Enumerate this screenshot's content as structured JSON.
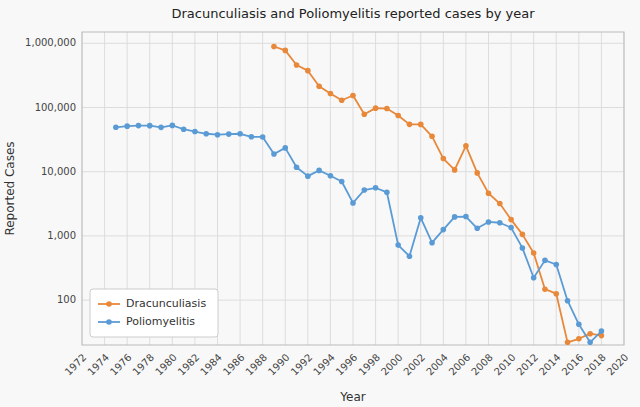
{
  "chart_data": {
    "type": "line",
    "title": "Dracunculiasis and Poliomyelitis reported cases by year",
    "x_label": "Year",
    "y_label": "Reported Cases",
    "log": "y",
    "grid": true,
    "legend": "lower left",
    "xlim": [
      1972,
      2020
    ],
    "ylim": [
      20,
      1500000
    ],
    "xticks": [
      1972,
      1974,
      1976,
      1978,
      1980,
      1982,
      1984,
      1986,
      1988,
      1990,
      1992,
      1994,
      1996,
      1998,
      2000,
      2002,
      2004,
      2006,
      2008,
      2010,
      2012,
      2014,
      2016,
      2018,
      2020
    ],
    "yticks": [
      100,
      {
        "value": 1000,
        "label": "1,000"
      },
      {
        "value": 10000,
        "label": "10,000"
      },
      {
        "value": 100000,
        "label": "100,000"
      },
      {
        "value": 1000000,
        "label": "1,000,000"
      }
    ],
    "series": [
      {
        "name": "Dracunculiasis",
        "color": "#E8883A",
        "marker": "circle",
        "x": [
          1989,
          1990,
          1991,
          1992,
          1993,
          1994,
          1995,
          1996,
          1997,
          1998,
          1999,
          2000,
          2001,
          2002,
          2003,
          2004,
          2005,
          2006,
          2007,
          2008,
          2009,
          2010,
          2011,
          2012,
          2013,
          2014,
          2015,
          2016,
          2017,
          2018
        ],
        "values": [
          892055,
          774763,
          459320,
          374780,
          213970,
          164980,
          129852,
          153693,
          78557,
          97755,
          96370,
          75223,
          54638,
          54519,
          35621,
          16026,
          10674,
          25217,
          9585,
          4619,
          3190,
          1797,
          1058,
          542,
          148,
          126,
          22,
          25,
          30,
          28
        ]
      },
      {
        "name": "Poliomyelitis",
        "color": "#5B9BD5",
        "marker": "circle",
        "x": [
          1975,
          1976,
          1977,
          1978,
          1979,
          1980,
          1981,
          1982,
          1983,
          1984,
          1985,
          1986,
          1987,
          1988,
          1989,
          1990,
          1991,
          1992,
          1993,
          1994,
          1995,
          1996,
          1997,
          1998,
          1999,
          2000,
          2001,
          2002,
          2003,
          2004,
          2005,
          2006,
          2007,
          2008,
          2009,
          2010,
          2011,
          2012,
          2013,
          2014,
          2015,
          2016,
          2017,
          2018
        ],
        "values": [
          49165,
          51256,
          52246,
          52168,
          49123,
          52610,
          45867,
          42234,
          39000,
          37700,
          38512,
          39000,
          34986,
          34821,
          18833,
          23484,
          11764,
          8527,
          10487,
          8641,
          7035,
          3265,
          5185,
          5620,
          4781,
          719,
          483,
          1918,
          784,
          1255,
          1979,
          2002,
          1315,
          1651,
          1604,
          1349,
          650,
          223,
          416,
          359,
          98,
          42,
          22,
          33
        ]
      }
    ]
  }
}
